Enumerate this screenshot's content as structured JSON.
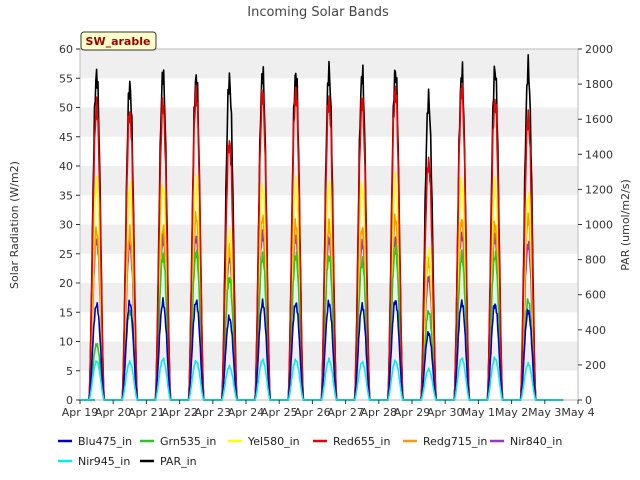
{
  "chart_data": {
    "type": "line",
    "title": "Incoming Solar Bands",
    "ylabel": "Solar Radiation (W/m2)",
    "y2label": "PAR (umol/m2/s)",
    "ylim": [
      0,
      60
    ],
    "y2lim": [
      0,
      2000
    ],
    "yticks": [
      0,
      5,
      10,
      15,
      20,
      25,
      30,
      35,
      40,
      45,
      50,
      55,
      60
    ],
    "y2ticks": [
      0,
      200,
      400,
      600,
      800,
      1000,
      1200,
      1400,
      1600,
      1800,
      2000
    ],
    "xticks": [
      "Apr 19",
      "Apr 20",
      "Apr 21",
      "Apr 22",
      "Apr 23",
      "Apr 24",
      "Apr 25",
      "Apr 26",
      "Apr 27",
      "Apr 28",
      "Apr 29",
      "Apr 30",
      "May 1",
      "May 2",
      "May 3",
      "May 4"
    ],
    "grid": "horizontal bands",
    "legend_position": "bottom",
    "annotation": "SW_arable",
    "day_labels": [
      "Apr 20",
      "Apr 21",
      "Apr 22",
      "Apr 23",
      "Apr 24",
      "Apr 25",
      "Apr 26",
      "Apr 27",
      "Apr 28",
      "Apr 29",
      "Apr 30",
      "May 1",
      "May 2",
      "May 3"
    ],
    "series": [
      {
        "name": "Blu475_in",
        "color": "#0000cc",
        "axis": "left",
        "daily_peak": [
          17.2,
          17.5,
          17.6,
          17.8,
          14.8,
          17.5,
          17.4,
          17.4,
          17.0,
          17.9,
          12.0,
          17.6,
          17.2,
          16.0
        ]
      },
      {
        "name": "Grn535_in",
        "color": "#22cc22",
        "axis": "left",
        "daily_peak": [
          10.0,
          16.0,
          26.0,
          26.5,
          22.0,
          26.0,
          26.0,
          26.0,
          25.0,
          27.0,
          16.0,
          26.0,
          26.0,
          18.0
        ]
      },
      {
        "name": "Yel580_in",
        "color": "#ffff00",
        "axis": "left",
        "daily_peak": [
          39.0,
          38.0,
          38.5,
          39.0,
          30.0,
          38.5,
          38.5,
          38.5,
          38.5,
          39.0,
          27.0,
          39.0,
          38.5,
          37.0
        ]
      },
      {
        "name": "Red655_in",
        "color": "#ee0000",
        "axis": "left",
        "daily_peak": [
          53.0,
          52.0,
          53.2,
          55.5,
          46.5,
          55.0,
          55.5,
          54.2,
          53.8,
          56.0,
          43.0,
          56.0,
          54.0,
          51.0
        ]
      },
      {
        "name": "Redg715_in",
        "color": "#ff9900",
        "axis": "left",
        "daily_peak": [
          30.5,
          30.0,
          31.0,
          33.0,
          27.0,
          33.0,
          31.5,
          31.5,
          31.0,
          32.5,
          25.0,
          32.5,
          31.5,
          33.0
        ]
      },
      {
        "name": "Nir840_in",
        "color": "#9933cc",
        "axis": "left",
        "daily_peak": [
          29.0,
          28.0,
          29.2,
          29.5,
          25.5,
          30.0,
          29.5,
          29.0,
          28.5,
          29.0,
          22.0,
          30.0,
          29.5,
          28.0
        ]
      },
      {
        "name": "Nir945_in",
        "color": "#00eeee",
        "axis": "left",
        "daily_peak": [
          7.0,
          6.8,
          7.3,
          7.0,
          6.0,
          7.2,
          7.2,
          7.2,
          6.8,
          7.0,
          5.5,
          7.5,
          7.5,
          6.5
        ]
      },
      {
        "name": "PAR_in",
        "color": "#000000",
        "axis": "right",
        "daily_peak": [
          1960,
          1890,
          1955,
          1940,
          1925,
          1960,
          1960,
          1980,
          1955,
          1980,
          1805,
          1960,
          1990,
          1990
        ]
      }
    ]
  }
}
